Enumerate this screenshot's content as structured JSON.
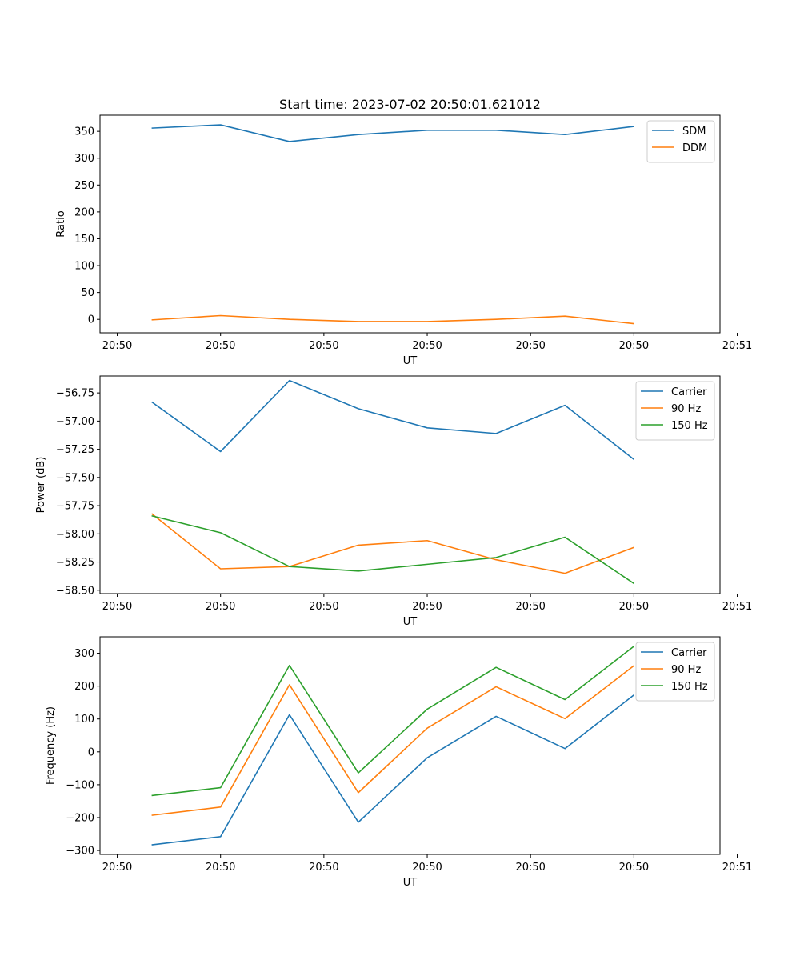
{
  "chart_data": [
    {
      "type": "line",
      "title": "Start time: 2023-07-02 20:50:01.621012",
      "xlabel": "UT",
      "ylabel": "Ratio",
      "xlim": [
        0,
        9
      ],
      "ylim": [
        -25,
        380
      ],
      "x": [
        0.75,
        1.75,
        2.75,
        3.75,
        4.75,
        5.75,
        6.75,
        7.75
      ],
      "xticks": [
        0.25,
        1.75,
        3.25,
        4.75,
        6.25,
        7.75,
        9.25
      ],
      "xtick_labels": [
        "20:50",
        "20:50",
        "20:50",
        "20:50",
        "20:50",
        "20:50",
        "20:51"
      ],
      "yticks": [
        0,
        50,
        100,
        150,
        200,
        250,
        300,
        350
      ],
      "ytick_labels": [
        "0",
        "50",
        "100",
        "150",
        "200",
        "250",
        "300",
        "350"
      ],
      "legend_position": "top-right",
      "series": [
        {
          "name": "SDM",
          "color": "#1f77b4",
          "values": [
            356,
            362,
            331,
            344,
            352,
            352,
            344,
            359
          ]
        },
        {
          "name": "DDM",
          "color": "#ff7f0e",
          "values": [
            -1,
            7,
            0,
            -4,
            -4,
            0,
            6,
            -8
          ]
        }
      ]
    },
    {
      "type": "line",
      "xlabel": "UT",
      "ylabel": "Power (dB)",
      "xlim": [
        0,
        9
      ],
      "ylim": [
        -58.53,
        -56.6
      ],
      "x": [
        0.75,
        1.75,
        2.75,
        3.75,
        4.75,
        5.75,
        6.75,
        7.75
      ],
      "xticks": [
        0.25,
        1.75,
        3.25,
        4.75,
        6.25,
        7.75,
        9.25
      ],
      "xtick_labels": [
        "20:50",
        "20:50",
        "20:50",
        "20:50",
        "20:50",
        "20:50",
        "20:51"
      ],
      "yticks": [
        -58.5,
        -58.25,
        -58.0,
        -57.75,
        -57.5,
        -57.25,
        -57.0,
        -56.75
      ],
      "ytick_labels": [
        "−58.50",
        "−58.25",
        "−58.00",
        "−57.75",
        "−57.50",
        "−57.25",
        "−57.00",
        "−56.75"
      ],
      "legend_position": "top-right",
      "series": [
        {
          "name": "Carrier",
          "color": "#1f77b4",
          "values": [
            -56.83,
            -57.27,
            -56.64,
            -56.89,
            -57.06,
            -57.11,
            -56.86,
            -57.34
          ]
        },
        {
          "name": "90 Hz",
          "color": "#ff7f0e",
          "values": [
            -57.82,
            -58.31,
            -58.29,
            -58.1,
            -58.06,
            -58.23,
            -58.35,
            -58.12
          ]
        },
        {
          "name": "150 Hz",
          "color": "#2ca02c",
          "values": [
            -57.84,
            -57.99,
            -58.29,
            -58.33,
            -58.27,
            -58.21,
            -58.03,
            -58.44
          ]
        }
      ]
    },
    {
      "type": "line",
      "xlabel": "UT",
      "ylabel": "Frequency (Hz)",
      "xlim": [
        0,
        9
      ],
      "ylim": [
        -312,
        350
      ],
      "x": [
        0.75,
        1.75,
        2.75,
        3.75,
        4.75,
        5.75,
        6.75,
        7.75
      ],
      "xticks": [
        0.25,
        1.75,
        3.25,
        4.75,
        6.25,
        7.75,
        9.25
      ],
      "xtick_labels": [
        "20:50",
        "20:50",
        "20:50",
        "20:50",
        "20:50",
        "20:50",
        "20:51"
      ],
      "yticks": [
        -300,
        -200,
        -100,
        0,
        100,
        200,
        300
      ],
      "ytick_labels": [
        "−300",
        "−200",
        "−100",
        "0",
        "100",
        "200",
        "300"
      ],
      "legend_position": "top-right",
      "series": [
        {
          "name": "Carrier",
          "color": "#1f77b4",
          "values": [
            -283,
            -258,
            113,
            -214,
            -18,
            108,
            10,
            173
          ]
        },
        {
          "name": "90 Hz",
          "color": "#ff7f0e",
          "values": [
            -193,
            -168,
            204,
            -124,
            72,
            198,
            101,
            262
          ]
        },
        {
          "name": "150 Hz",
          "color": "#2ca02c",
          "values": [
            -133,
            -109,
            263,
            -64,
            130,
            257,
            159,
            321
          ]
        }
      ]
    }
  ]
}
